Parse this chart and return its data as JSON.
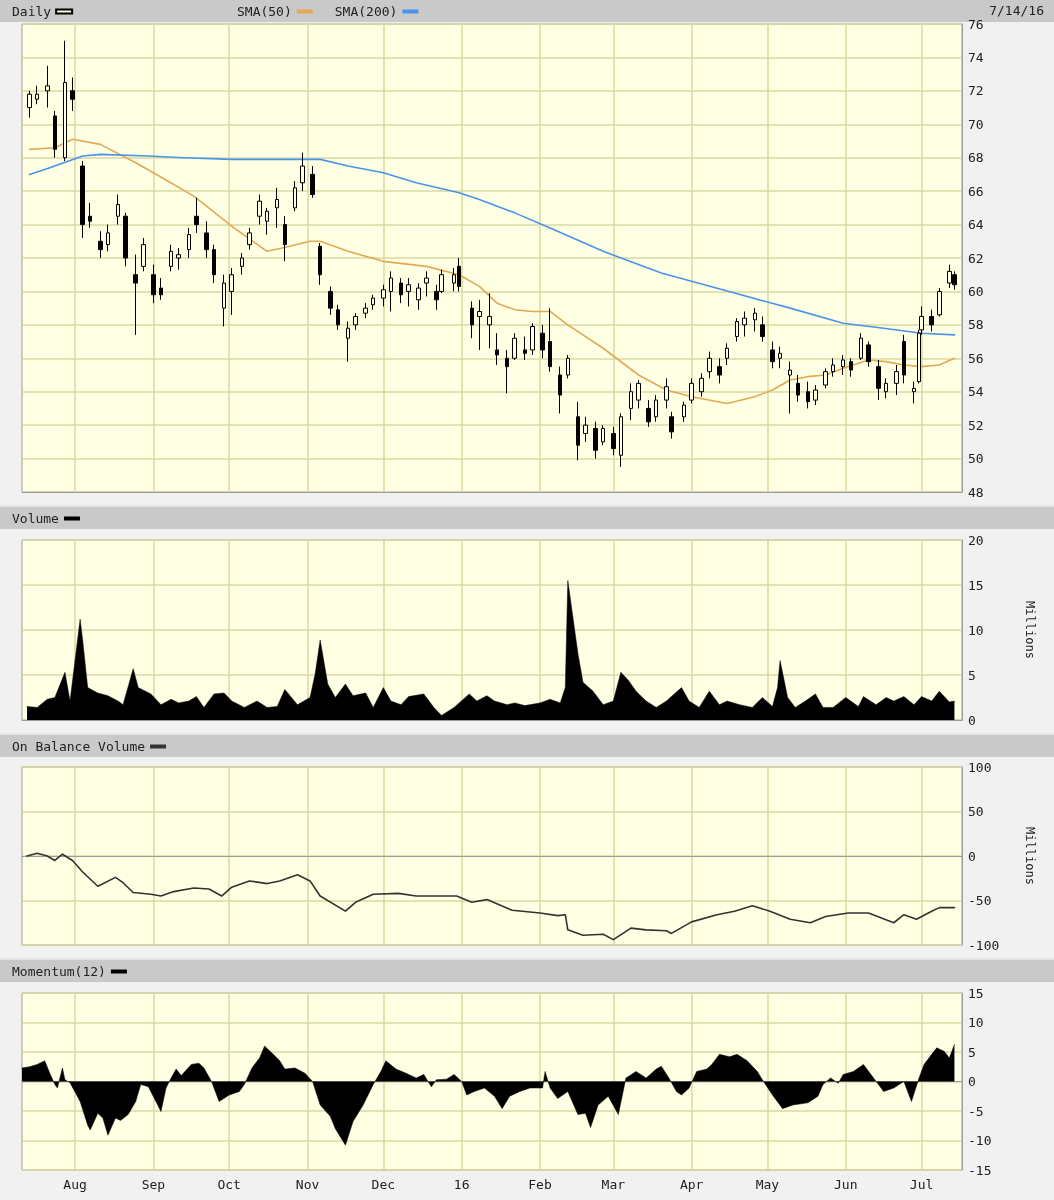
{
  "chart_data": [
    {
      "type": "candlestick",
      "legend": "top left",
      "grid": true,
      "tick_labels": "y",
      "annotations": [
        "7/14/16"
      ],
      "xlim": [
        "2015-07-11",
        "2016-07-17"
      ],
      "xticks": [
        {
          "value": "2015-08-01",
          "label": null
        },
        {
          "value": "2015-09-01",
          "label": null
        },
        {
          "value": "2015-10-01",
          "label": null
        },
        {
          "value": "2015-11-01",
          "label": null
        },
        {
          "value": "2015-12-01",
          "label": null
        },
        {
          "value": "2016-01-01",
          "label": null
        },
        {
          "value": "2016-02-01",
          "label": null
        },
        {
          "value": "2016-03-01",
          "label": null
        },
        {
          "value": "2016-04-01",
          "label": null
        },
        {
          "value": "2016-05-01",
          "label": null
        },
        {
          "value": "2016-06-01",
          "label": null
        },
        {
          "value": "2016-07-01",
          "label": null
        }
      ],
      "ylim": [
        48,
        76
      ],
      "yticks": [
        48,
        50,
        52,
        54,
        56,
        58,
        60,
        62,
        64,
        66,
        68,
        70,
        72,
        74,
        76
      ],
      "series": [
        {
          "name": "Daily",
          "color": "#000000",
          "x": [
            "2015-07-14",
            "2015-07-17",
            "2015-07-21",
            "2015-07-24",
            "2015-07-28",
            "2015-07-31",
            "2015-08-04",
            "2015-08-07",
            "2015-08-11",
            "2015-08-14",
            "2015-08-18",
            "2015-08-21",
            "2015-08-25",
            "2015-08-28",
            "2015-09-01",
            "2015-09-04",
            "2015-09-08",
            "2015-09-11",
            "2015-09-15",
            "2015-09-18",
            "2015-09-22",
            "2015-09-25",
            "2015-09-29",
            "2015-10-02",
            "2015-10-06",
            "2015-10-09",
            "2015-10-13",
            "2015-10-16",
            "2015-10-20",
            "2015-10-23",
            "2015-10-27",
            "2015-10-30",
            "2015-11-03",
            "2015-11-06",
            "2015-11-10",
            "2015-11-13",
            "2015-11-17",
            "2015-11-20",
            "2015-11-24",
            "2015-11-27",
            "2015-12-01",
            "2015-12-04",
            "2015-12-08",
            "2015-12-11",
            "2015-12-15",
            "2015-12-18",
            "2015-12-22",
            "2015-12-24",
            "2015-12-29",
            "2015-12-31",
            "2016-01-05",
            "2016-01-08",
            "2016-01-12",
            "2016-01-15",
            "2016-01-19",
            "2016-01-22",
            "2016-01-26",
            "2016-01-29",
            "2016-02-02",
            "2016-02-05",
            "2016-02-09",
            "2016-02-12",
            "2016-02-16",
            "2016-02-19",
            "2016-02-23",
            "2016-02-26",
            "2016-03-01",
            "2016-03-04",
            "2016-03-08",
            "2016-03-11",
            "2016-03-15",
            "2016-03-18",
            "2016-03-22",
            "2016-03-24",
            "2016-03-29",
            "2016-04-01",
            "2016-04-05",
            "2016-04-08",
            "2016-04-12",
            "2016-04-15",
            "2016-04-19",
            "2016-04-22",
            "2016-04-26",
            "2016-04-29",
            "2016-05-03",
            "2016-05-06",
            "2016-05-10",
            "2016-05-13",
            "2016-05-17",
            "2016-05-20",
            "2016-05-24",
            "2016-05-27",
            "2016-05-31",
            "2016-06-03",
            "2016-06-07",
            "2016-06-10",
            "2016-06-14",
            "2016-06-17",
            "2016-06-21",
            "2016-06-24",
            "2016-06-28",
            "2016-06-30",
            "2016-07-01",
            "2016-07-05",
            "2016-07-08",
            "2016-07-12",
            "2016-07-14"
          ],
          "ohlc": [
            [
              71,
              72,
              70.4,
              71.8
            ],
            [
              71.5,
              72.3,
              71.2,
              71.8
            ],
            [
              72,
              73.5,
              71,
              72.3
            ],
            [
              70.5,
              70.8,
              68,
              68.5
            ],
            [
              68,
              75,
              67.8,
              72.5
            ],
            [
              72,
              72.8,
              70.8,
              71.5
            ],
            [
              67.5,
              67.8,
              63.2,
              64
            ],
            [
              64.5,
              65.3,
              63.8,
              64.2
            ],
            [
              63,
              63.6,
              62,
              62.5
            ],
            [
              62.8,
              64,
              62.4,
              63.5
            ],
            [
              64.5,
              65.8,
              64,
              65.2
            ],
            [
              64.5,
              64.7,
              61.5,
              62
            ],
            [
              61,
              62.2,
              57.4,
              60.5
            ],
            [
              61.5,
              63.2,
              61.2,
              62.8
            ],
            [
              61,
              61.6,
              59.3,
              59.8
            ],
            [
              60.2,
              60.8,
              59.5,
              59.8
            ],
            [
              61.5,
              62.8,
              61.2,
              62.4
            ],
            [
              62,
              62.6,
              61.3,
              62.2
            ],
            [
              62.5,
              63.8,
              62,
              63.4
            ],
            [
              64.5,
              65.6,
              63.5,
              64
            ],
            [
              63.5,
              64.2,
              62,
              62.5
            ],
            [
              62.5,
              62.8,
              60.5,
              61
            ],
            [
              59,
              61,
              57.9,
              60.5
            ],
            [
              60,
              61.4,
              58.6,
              61
            ],
            [
              61.5,
              62.3,
              61,
              62
            ],
            [
              62.8,
              63.8,
              62.5,
              63.5
            ],
            [
              64.5,
              65.8,
              64,
              65.4
            ],
            [
              64.2,
              65,
              63.4,
              64.8
            ],
            [
              65,
              66.2,
              63.8,
              65.5
            ],
            [
              64,
              64.5,
              61.8,
              62.8
            ],
            [
              65,
              66.6,
              64.8,
              66.2
            ],
            [
              66.5,
              68.3,
              66,
              67.5
            ],
            [
              67,
              67.5,
              65.6,
              65.8
            ],
            [
              62.7,
              62.9,
              60.4,
              61
            ],
            [
              60,
              60.3,
              58.6,
              59
            ],
            [
              58.9,
              59.2,
              57.7,
              58
            ],
            [
              57.2,
              58.2,
              55.8,
              57.8
            ],
            [
              58,
              58.7,
              57.7,
              58.5
            ],
            [
              58.7,
              59.3,
              58.4,
              59
            ],
            [
              59.2,
              59.8,
              58.9,
              59.6
            ],
            [
              59.6,
              60.4,
              59.1,
              60.1
            ],
            [
              60,
              61.2,
              58.8,
              60.8
            ],
            [
              60.5,
              60.8,
              59.3,
              59.8
            ],
            [
              60,
              60.8,
              59.1,
              60.4
            ],
            [
              59.5,
              60.5,
              58.9,
              60.2
            ],
            [
              60.5,
              61.2,
              59.7,
              60.8
            ],
            [
              60,
              60.4,
              58.9,
              59.5
            ],
            [
              60,
              61.3,
              59.9,
              61
            ],
            [
              60.5,
              61.4,
              60,
              61
            ],
            [
              61.5,
              62,
              60,
              60.3
            ],
            [
              59,
              59.4,
              57.2,
              58
            ],
            [
              58.5,
              59.5,
              56.5,
              58.8
            ],
            [
              58,
              59.9,
              56.6,
              58.5
            ],
            [
              56.5,
              57.5,
              55.6,
              56.2
            ],
            [
              56,
              56.5,
              53.9,
              55.5
            ],
            [
              56,
              57.5,
              55.9,
              57.2
            ],
            [
              56.5,
              57.3,
              55.9,
              56.3
            ],
            [
              56.5,
              58.1,
              56.2,
              57.9
            ],
            [
              57.5,
              58,
              56,
              56.5
            ],
            [
              57,
              59,
              55.2,
              55.5
            ],
            [
              55,
              55.5,
              52.7,
              53.8
            ],
            [
              55,
              56.2,
              54.8,
              56
            ],
            [
              52.5,
              53.4,
              49.9,
              50.8
            ],
            [
              51.5,
              52.5,
              51,
              52
            ],
            [
              51.8,
              52.2,
              50,
              50.5
            ],
            [
              51,
              52,
              50.8,
              51.8
            ],
            [
              51.5,
              51.9,
              50.2,
              50.6
            ],
            [
              50.2,
              52.7,
              49.5,
              52.5
            ],
            [
              53,
              54.5,
              52.3,
              54
            ],
            [
              53.5,
              54.7,
              53,
              54.5
            ],
            [
              53,
              53.5,
              51.9,
              52.2
            ],
            [
              52.5,
              53.8,
              52.2,
              53.5
            ],
            [
              53.5,
              54.8,
              53,
              54.3
            ],
            [
              52.5,
              52.8,
              51.2,
              51.6
            ],
            [
              52.5,
              53.4,
              52.2,
              53.2
            ],
            [
              53.5,
              54.8,
              53.3,
              54.5
            ],
            [
              54,
              55.1,
              53.7,
              54.8
            ],
            [
              55.2,
              56.4,
              54.8,
              56
            ],
            [
              55.5,
              56,
              54.5,
              55
            ],
            [
              56,
              56.9,
              55.6,
              56.6
            ],
            [
              57.3,
              58.4,
              57,
              58.2
            ],
            [
              58,
              58.8,
              57.3,
              58.4
            ],
            [
              58.3,
              59,
              57.6,
              58.7
            ],
            [
              58,
              58.5,
              57,
              57.3
            ],
            [
              56.5,
              57,
              55.4,
              55.8
            ],
            [
              56,
              56.7,
              55.4,
              56.3
            ],
            [
              55,
              55.8,
              52.7,
              55.3
            ],
            [
              54.5,
              55,
              53.4,
              53.8
            ],
            [
              54,
              54.6,
              53,
              53.4
            ],
            [
              53.5,
              54.4,
              53.2,
              54.1
            ],
            [
              54.4,
              55.4,
              54.2,
              55.2
            ],
            [
              55.2,
              56,
              54.9,
              55.6
            ],
            [
              55.5,
              56.2,
              55,
              55.9
            ],
            [
              55.8,
              56,
              54.9,
              55.3
            ],
            [
              56,
              57.5,
              55.9,
              57.2
            ],
            [
              56.8,
              57,
              55.5,
              55.8
            ],
            [
              55.5,
              55.9,
              53.5,
              54.2
            ],
            [
              54,
              54.8,
              53.6,
              54.5
            ],
            [
              54.5,
              55.6,
              53.8,
              55.2
            ],
            [
              57,
              57.4,
              54.5,
              55
            ],
            [
              54,
              54.6,
              53.3,
              54.2
            ],
            [
              54.6,
              57.7,
              54.5,
              57.5
            ],
            [
              57.7,
              59.1,
              57.4,
              58.5
            ],
            [
              58.5,
              58.9,
              57.6,
              58
            ],
            [
              58.6,
              60.2,
              58.5,
              60
            ],
            [
              60.5,
              61.6,
              60.2,
              61.2
            ],
            [
              61,
              61.2,
              60.1,
              60.4
            ]
          ]
        },
        {
          "name": "SMA(50)",
          "type": "line",
          "color": "#e2a955",
          "x": [
            "2015-07-14",
            "2015-07-24",
            "2015-07-31",
            "2015-08-11",
            "2015-08-25",
            "2015-09-01",
            "2015-09-17",
            "2015-10-02",
            "2015-10-16",
            "2015-10-22",
            "2015-11-02",
            "2015-11-06",
            "2015-11-17",
            "2015-12-01",
            "2015-12-18",
            "2015-12-31",
            "2016-01-08",
            "2016-01-15",
            "2016-01-22",
            "2016-01-29",
            "2016-02-05",
            "2016-02-12",
            "2016-02-26",
            "2016-03-11",
            "2016-03-22",
            "2016-04-01",
            "2016-04-15",
            "2016-04-26",
            "2016-05-03",
            "2016-05-10",
            "2016-05-17",
            "2016-05-24",
            "2016-05-31",
            "2016-06-10",
            "2016-06-17",
            "2016-06-24",
            "2016-07-01",
            "2016-07-08",
            "2016-07-14"
          ],
          "values": [
            68.5,
            68.6,
            69.1,
            68.8,
            67.7,
            67.1,
            65.7,
            63.9,
            62.4,
            62.6,
            63,
            63,
            62.4,
            61.8,
            61.5,
            61,
            60.3,
            59.3,
            58.9,
            58.8,
            58.8,
            58,
            56.6,
            55,
            54.1,
            53.7,
            53.3,
            53.7,
            54.1,
            54.7,
            54.9,
            55,
            55.4,
            55.9,
            55.8,
            55.6,
            55.5,
            55.6,
            56
          ]
        },
        {
          "name": "SMA(200)",
          "type": "line",
          "color": "#4a93ea",
          "x": [
            "2015-07-14",
            "2015-07-22",
            "2015-08-04",
            "2015-08-11",
            "2015-08-30",
            "2015-09-13",
            "2015-10-02",
            "2015-11-06",
            "2015-11-17",
            "2015-12-01",
            "2015-12-14",
            "2015-12-31",
            "2016-01-08",
            "2016-01-22",
            "2016-02-05",
            "2016-02-26",
            "2016-03-20",
            "2016-04-18",
            "2016-05-10",
            "2016-05-31",
            "2016-06-16",
            "2016-07-01",
            "2016-07-14"
          ],
          "values": [
            67,
            67.4,
            68.1,
            68.2,
            68.1,
            68,
            67.9,
            67.9,
            67.5,
            67.1,
            66.5,
            65.9,
            65.5,
            64.7,
            63.8,
            62.4,
            61.1,
            59.9,
            59,
            58.1,
            57.8,
            57.5,
            57.4
          ]
        }
      ]
    },
    {
      "type": "area",
      "legend": "top left",
      "grid": true,
      "tick_labels": "y",
      "ylabel": "Millions",
      "xlim": [
        "2015-07-11",
        "2016-07-17"
      ],
      "xticks": [
        {
          "value": "2015-08-01",
          "label": null
        },
        {
          "value": "2015-09-01",
          "label": null
        },
        {
          "value": "2015-10-01",
          "label": null
        },
        {
          "value": "2015-11-01",
          "label": null
        },
        {
          "value": "2015-12-01",
          "label": null
        },
        {
          "value": "2016-01-01",
          "label": null
        },
        {
          "value": "2016-02-01",
          "label": null
        },
        {
          "value": "2016-03-01",
          "label": null
        },
        {
          "value": "2016-04-01",
          "label": null
        },
        {
          "value": "2016-05-01",
          "label": null
        },
        {
          "value": "2016-06-01",
          "label": null
        },
        {
          "value": "2016-07-01",
          "label": null
        }
      ],
      "ylim": [
        0,
        20
      ],
      "yticks": [
        0,
        5,
        10,
        15,
        20
      ],
      "series": [
        {
          "name": "Volume",
          "color": "#000000",
          "x": [
            "2015-07-13",
            "2015-07-17",
            "2015-07-21",
            "2015-07-24",
            "2015-07-28",
            "2015-07-30",
            "2015-08-03",
            "2015-08-04",
            "2015-08-06",
            "2015-08-10",
            "2015-08-14",
            "2015-08-18",
            "2015-08-20",
            "2015-08-24",
            "2015-08-26",
            "2015-08-31",
            "2015-09-04",
            "2015-09-08",
            "2015-09-11",
            "2015-09-15",
            "2015-09-18",
            "2015-09-21",
            "2015-09-25",
            "2015-09-29",
            "2015-10-02",
            "2015-10-07",
            "2015-10-12",
            "2015-10-16",
            "2015-10-20",
            "2015-10-23",
            "2015-10-28",
            "2015-11-02",
            "2015-11-04",
            "2015-11-06",
            "2015-11-09",
            "2015-11-12",
            "2015-11-16",
            "2015-11-19",
            "2015-11-24",
            "2015-11-27",
            "2015-12-01",
            "2015-12-04",
            "2015-12-08",
            "2015-12-11",
            "2015-12-17",
            "2015-12-21",
            "2015-12-24",
            "2015-12-29",
            "2016-01-04",
            "2016-01-07",
            "2016-01-11",
            "2016-01-14",
            "2016-01-19",
            "2016-01-22",
            "2016-01-26",
            "2016-02-01",
            "2016-02-05",
            "2016-02-09",
            "2016-02-11",
            "2016-02-12",
            "2016-02-16",
            "2016-02-18",
            "2016-02-22",
            "2016-02-26",
            "2016-03-01",
            "2016-03-04",
            "2016-03-07",
            "2016-03-10",
            "2016-03-14",
            "2016-03-18",
            "2016-03-22",
            "2016-03-28",
            "2016-03-31",
            "2016-04-04",
            "2016-04-08",
            "2016-04-12",
            "2016-04-15",
            "2016-04-20",
            "2016-04-25",
            "2016-04-29",
            "2016-05-03",
            "2016-05-05",
            "2016-05-06",
            "2016-05-09",
            "2016-05-12",
            "2016-05-16",
            "2016-05-20",
            "2016-05-23",
            "2016-05-27",
            "2016-06-01",
            "2016-06-06",
            "2016-06-08",
            "2016-06-13",
            "2016-06-17",
            "2016-06-20",
            "2016-06-24",
            "2016-06-28",
            "2016-07-01",
            "2016-07-05",
            "2016-07-08",
            "2016-07-12",
            "2016-07-14"
          ],
          "values": [
            1.5,
            1.4,
            2.3,
            2.5,
            5.3,
            2.1,
            11.2,
            8.9,
            3.6,
            3.0,
            2.7,
            2.1,
            1.7,
            5.7,
            3.6,
            2.9,
            1.7,
            2.3,
            1.9,
            2.1,
            2.6,
            1.4,
            2.9,
            3.0,
            2.1,
            1.4,
            2.1,
            1.4,
            1.5,
            3.4,
            1.7,
            2.5,
            5.1,
            8.9,
            4.0,
            2.5,
            4.0,
            2.7,
            3.0,
            1.4,
            3.6,
            2.1,
            1.7,
            2.6,
            2.9,
            1.4,
            0.5,
            1.4,
            2.9,
            2.1,
            2.7,
            2.1,
            1.7,
            1.9,
            1.6,
            1.9,
            2.3,
            1.9,
            3.6,
            15.5,
            7.4,
            4.2,
            3.2,
            1.7,
            2.1,
            5.3,
            4.4,
            3.2,
            2.1,
            1.4,
            2.1,
            3.6,
            2.1,
            1.4,
            3.2,
            1.7,
            2.1,
            1.7,
            1.4,
            2.5,
            1.5,
            3.6,
            6.6,
            2.5,
            1.4,
            2.1,
            2.9,
            1.4,
            1.4,
            2.5,
            1.5,
            2.6,
            1.7,
            2.5,
            2.1,
            2.6,
            1.7,
            2.6,
            2.1,
            3.2,
            2.0,
            2.1
          ]
        }
      ]
    },
    {
      "type": "line",
      "legend": "top left",
      "grid": true,
      "tick_labels": "y",
      "ylabel": "Millions",
      "xlim": [
        "2015-07-11",
        "2016-07-17"
      ],
      "xticks": [
        {
          "value": "2015-08-01",
          "label": null
        },
        {
          "value": "2015-09-01",
          "label": null
        },
        {
          "value": "2015-10-01",
          "label": null
        },
        {
          "value": "2015-11-01",
          "label": null
        },
        {
          "value": "2015-12-01",
          "label": null
        },
        {
          "value": "2016-01-01",
          "label": null
        },
        {
          "value": "2016-02-01",
          "label": null
        },
        {
          "value": "2016-03-01",
          "label": null
        },
        {
          "value": "2016-04-01",
          "label": null
        },
        {
          "value": "2016-05-01",
          "label": null
        },
        {
          "value": "2016-06-01",
          "label": null
        },
        {
          "value": "2016-07-01",
          "label": null
        }
      ],
      "ylim": [
        -100,
        100
      ],
      "yticks": [
        -100,
        -50,
        0,
        50,
        100
      ],
      "series": [
        {
          "name": "On Balance Volume",
          "color": "#333333",
          "x": [
            "2015-07-13",
            "2015-07-17",
            "2015-07-21",
            "2015-07-24",
            "2015-07-27",
            "2015-07-31",
            "2015-08-04",
            "2015-08-10",
            "2015-08-17",
            "2015-08-20",
            "2015-08-24",
            "2015-08-31",
            "2015-09-04",
            "2015-09-09",
            "2015-09-17",
            "2015-09-23",
            "2015-09-28",
            "2015-10-02",
            "2015-10-09",
            "2015-10-16",
            "2015-10-21",
            "2015-10-28",
            "2015-11-02",
            "2015-11-06",
            "2015-11-16",
            "2015-11-20",
            "2015-11-27",
            "2015-12-07",
            "2015-12-14",
            "2015-12-22",
            "2015-12-30",
            "2016-01-05",
            "2016-01-11",
            "2016-01-21",
            "2016-02-01",
            "2016-02-08",
            "2016-02-11",
            "2016-02-12",
            "2016-02-18",
            "2016-02-26",
            "2016-03-01",
            "2016-03-08",
            "2016-03-14",
            "2016-03-22",
            "2016-03-24",
            "2016-04-01",
            "2016-04-11",
            "2016-04-18",
            "2016-04-25",
            "2016-05-02",
            "2016-05-10",
            "2016-05-18",
            "2016-05-24",
            "2016-06-02",
            "2016-06-10",
            "2016-06-20",
            "2016-06-24",
            "2016-06-29",
            "2016-07-05",
            "2016-07-08",
            "2016-07-14"
          ],
          "values": [
            0,
            3,
            0,
            -5,
            2,
            -5,
            -18,
            -34,
            -24,
            -30,
            -41,
            -43,
            -45,
            -40,
            -36,
            -37,
            -45,
            -35,
            -28,
            -31,
            -28,
            -21,
            -28,
            -45,
            -62,
            -52,
            -43,
            -42,
            -45,
            -45,
            -45,
            -52,
            -49,
            -61,
            -64,
            -67,
            -66,
            -83,
            -89,
            -88,
            -94,
            -81,
            -83,
            -84,
            -87,
            -74,
            -66,
            -62,
            -56,
            -62,
            -71,
            -75,
            -68,
            -64,
            -64,
            -75,
            -66,
            -71,
            -62,
            -58,
            -58
          ]
        }
      ]
    },
    {
      "type": "area",
      "legend": "top left",
      "grid": true,
      "xlim": [
        "2015-07-11",
        "2016-07-17"
      ],
      "xticks": [
        {
          "value": "2015-08-01",
          "label": "Aug"
        },
        {
          "value": "2015-09-01",
          "label": "Sep"
        },
        {
          "value": "2015-10-01",
          "label": "Oct"
        },
        {
          "value": "2015-11-01",
          "label": "Nov"
        },
        {
          "value": "2015-12-01",
          "label": "Dec"
        },
        {
          "value": "2016-01-01",
          "label": "16"
        },
        {
          "value": "2016-02-01",
          "label": "Feb"
        },
        {
          "value": "2016-03-01",
          "label": "Mar"
        },
        {
          "value": "2016-04-01",
          "label": "Apr"
        },
        {
          "value": "2016-05-01",
          "label": "May"
        },
        {
          "value": "2016-06-01",
          "label": "Jun"
        },
        {
          "value": "2016-07-01",
          "label": "Jul"
        }
      ],
      "ylim": [
        -15,
        15
      ],
      "yticks": [
        -15,
        -10,
        -5,
        0,
        5,
        10,
        15
      ],
      "series": [
        {
          "name": "Momentum(12)",
          "color": "#000000",
          "x": [
            "2015-07-11",
            "2015-07-14",
            "2015-07-17",
            "2015-07-20",
            "2015-07-22",
            "2015-07-24",
            "2015-07-25",
            "2015-07-27",
            "2015-07-28",
            "2015-07-30",
            "2015-08-03",
            "2015-08-06",
            "2015-08-07",
            "2015-08-10",
            "2015-08-12",
            "2015-08-14",
            "2015-08-17",
            "2015-08-19",
            "2015-08-22",
            "2015-08-25",
            "2015-08-27",
            "2015-08-30",
            "2015-09-02",
            "2015-09-04",
            "2015-09-06",
            "2015-09-08",
            "2015-09-10",
            "2015-09-12",
            "2015-09-16",
            "2015-09-19",
            "2015-09-21",
            "2015-09-24",
            "2015-09-27",
            "2015-10-01",
            "2015-10-05",
            "2015-10-07",
            "2015-10-10",
            "2015-10-13",
            "2015-10-15",
            "2015-10-18",
            "2015-10-21",
            "2015-10-23",
            "2015-10-27",
            "2015-10-31",
            "2015-11-03",
            "2015-11-06",
            "2015-11-10",
            "2015-11-12",
            "2015-11-16",
            "2015-11-19",
            "2015-11-23",
            "2015-11-27",
            "2015-11-30",
            "2015-12-02",
            "2015-12-06",
            "2015-12-10",
            "2015-12-14",
            "2015-12-17",
            "2015-12-20",
            "2015-12-22",
            "2015-12-26",
            "2015-12-29",
            "2016-01-01",
            "2016-01-03",
            "2016-01-06",
            "2016-01-10",
            "2016-01-14",
            "2016-01-17",
            "2016-01-20",
            "2016-01-24",
            "2016-01-28",
            "2016-02-02",
            "2016-02-03",
            "2016-02-05",
            "2016-02-08",
            "2016-02-12",
            "2016-02-16",
            "2016-02-19",
            "2016-02-21",
            "2016-02-24",
            "2016-02-28",
            "2016-03-03",
            "2016-03-06",
            "2016-03-10",
            "2016-03-14",
            "2016-03-18",
            "2016-03-20",
            "2016-03-23",
            "2016-03-26",
            "2016-03-28",
            "2016-03-31",
            "2016-04-03",
            "2016-04-07",
            "2016-04-09",
            "2016-04-12",
            "2016-04-16",
            "2016-04-19",
            "2016-04-23",
            "2016-04-27",
            "2016-04-29",
            "2016-05-03",
            "2016-05-07",
            "2016-05-11",
            "2016-05-17",
            "2016-05-21",
            "2016-05-23",
            "2016-05-26",
            "2016-05-29",
            "2016-05-31",
            "2016-06-04",
            "2016-06-08",
            "2016-06-12",
            "2016-06-16",
            "2016-06-20",
            "2016-06-24",
            "2016-06-27",
            "2016-06-30",
            "2016-07-02",
            "2016-07-05",
            "2016-07-07",
            "2016-07-10",
            "2016-07-12",
            "2016-07-14"
          ],
          "values": [
            2.3,
            2.5,
            2.9,
            3.5,
            1.4,
            -0.5,
            -1.1,
            2.3,
            0.3,
            -0.2,
            -3.4,
            -7.4,
            -8.2,
            -5.4,
            -6.2,
            -9.1,
            -6.2,
            -6.6,
            -5.6,
            -3.4,
            -0.5,
            -0.9,
            -3.4,
            -5.1,
            -1.1,
            0.6,
            2.1,
            1.0,
            2.9,
            3.1,
            2.3,
            0,
            -3.4,
            -2.3,
            -1.7,
            -0.5,
            2.3,
            4.0,
            6.0,
            4.8,
            3.5,
            2.1,
            2.3,
            1.4,
            0,
            -4.0,
            -5.9,
            -8.0,
            -10.8,
            -6.8,
            -4.0,
            -0.5,
            1.7,
            3.5,
            2.1,
            1.4,
            0.6,
            1.2,
            -0.9,
            0.3,
            0.4,
            1.2,
            0,
            -2.3,
            -1.7,
            -1.1,
            -2.5,
            -4.6,
            -2.5,
            -1.7,
            -1.1,
            -1.1,
            1.7,
            -1.1,
            -2.9,
            -1.7,
            -5.6,
            -5.4,
            -7.8,
            -4.0,
            -2.5,
            -5.6,
            0.6,
            1.7,
            0.6,
            2.1,
            2.6,
            0.6,
            -1.7,
            -2.3,
            -1.1,
            1.7,
            2.1,
            2.9,
            4.6,
            4.2,
            4.6,
            3.5,
            1.7,
            0.3,
            -2.3,
            -4.6,
            -4.0,
            -3.6,
            -2.5,
            -0.5,
            0.6,
            -0.3,
            1.2,
            1.7,
            2.9,
            0.6,
            -1.7,
            -1.1,
            0,
            -3.4,
            0.6,
            2.9,
            4.6,
            5.7,
            5.1,
            4.0,
            6.3
          ]
        }
      ]
    }
  ]
}
